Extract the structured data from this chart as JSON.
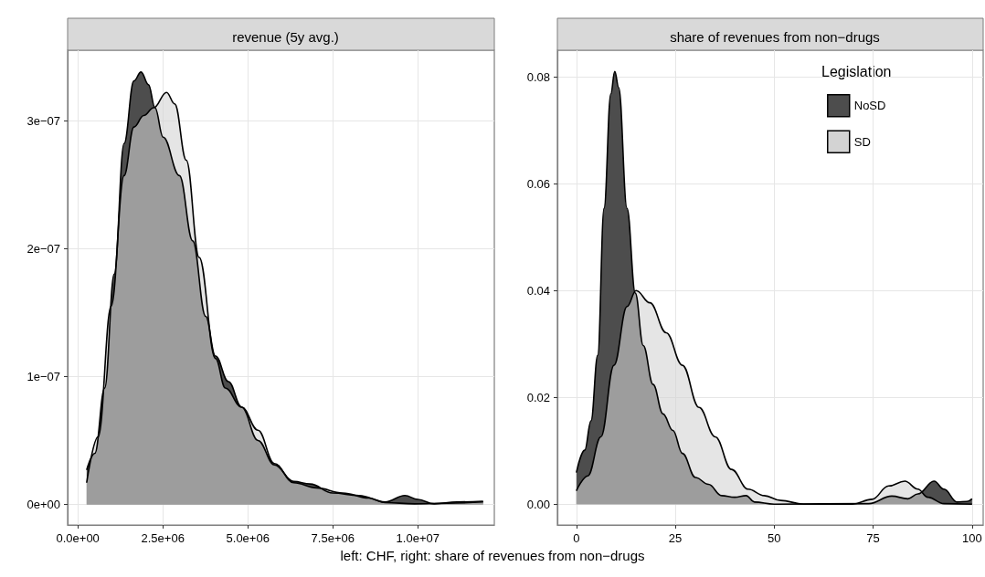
{
  "chart_data": [
    {
      "type": "area",
      "title": "revenue (5y avg.)",
      "annotations": [
        "left: CHF, right: share of revenues from non−drugs"
      ],
      "marker": "none",
      "grid": true,
      "legend": false,
      "xlim": [
        -300000,
        12250000
      ],
      "ylim": [
        -1.6e-08,
        3.55e-07
      ],
      "xticks": [
        {
          "value": 0,
          "label": "0.0e+00"
        },
        {
          "value": 2500000,
          "label": "2.5e+06"
        },
        {
          "value": 5000000,
          "label": "5.0e+06"
        },
        {
          "value": 7500000,
          "label": "7.5e+06"
        },
        {
          "value": 10000000,
          "label": "1.0e+07"
        }
      ],
      "yticks": [
        {
          "value": 0,
          "label": "0e+00"
        },
        {
          "value": 1e-07,
          "label": "1e−07"
        },
        {
          "value": 2e-07,
          "label": "2e−07"
        },
        {
          "value": 3e-07,
          "label": "3e−07"
        }
      ],
      "series": [
        {
          "color": "#4d4d4d",
          "x": [
            260000,
            500000,
            790000,
            1070000,
            1360000,
            1650000,
            1860000,
            2080000,
            2270000,
            2510000,
            2990000,
            3380000,
            3760000,
            4050000,
            4430000,
            4820000,
            5300000,
            5780000,
            6350000,
            6830000,
            7500000,
            8270000,
            9040000,
            9620000,
            10000000,
            10480000,
            11150000,
            11920000
          ],
          "values": [
            2.7e-08,
            4e-08,
            9.1e-08,
            1.8e-07,
            2.82e-07,
            3.31e-07,
            3.38e-07,
            3.28e-07,
            3.1e-07,
            2.87e-07,
            2.57e-07,
            2.06e-07,
            1.47e-07,
            1.16e-07,
            9.6e-08,
            7.6e-08,
            5e-08,
            3.1e-08,
            1.8e-08,
            1.6e-08,
            9e-09,
            7e-09,
            2e-09,
            7e-09,
            4e-09,
            5e-10,
            2e-09,
            2.5e-09
          ]
        },
        {
          "color": "#d3d3d3",
          "x": [
            260000,
            600000,
            980000,
            1360000,
            1650000,
            1940000,
            2230000,
            2610000,
            2850000,
            3190000,
            3570000,
            4050000,
            4340000,
            4820000,
            5300000,
            5780000,
            6350000,
            7020000,
            7790000,
            8560000,
            9040000,
            9900000,
            10860000,
            11920000
          ],
          "values": [
            1.7e-08,
            5.3e-08,
            1.55e-07,
            2.57e-07,
            2.95e-07,
            3.04e-07,
            3.1e-07,
            3.22e-07,
            3.13e-07,
            2.69e-07,
            1.93e-07,
            1.14e-07,
            9.1e-08,
            7.6e-08,
            5.8e-08,
            3.2e-08,
            1.7e-08,
            1.3e-08,
            9e-09,
            5e-09,
            1.5e-09,
            5e-10,
            1e-09,
            2e-09
          ]
        }
      ]
    },
    {
      "type": "area",
      "title": "share of revenues from non−drugs",
      "marker": "none",
      "grid": true,
      "legend": "top right",
      "legend_title": "Legislation",
      "xlim": [
        -4.8,
        102.8
      ],
      "ylim": [
        -0.0039,
        0.085
      ],
      "xticks": [
        0,
        25,
        50,
        75,
        100
      ],
      "yticks": [
        {
          "value": 0,
          "label": "0.00"
        },
        {
          "value": 0.02,
          "label": "0.02"
        },
        {
          "value": 0.04,
          "label": "0.04"
        },
        {
          "value": 0.06,
          "label": "0.06"
        },
        {
          "value": 0.08,
          "label": "0.08"
        }
      ],
      "series": [
        {
          "name": "NoSD",
          "color": "#4d4d4d",
          "x": [
            0,
            2.1,
            3.7,
            5.4,
            7.0,
            8.7,
            9.7,
            10.7,
            12.8,
            14.9,
            16.9,
            19.4,
            21.9,
            24.4,
            26.8,
            30.1,
            33.4,
            36.7,
            40,
            42.9,
            45,
            50,
            73.9,
            79.7,
            83.8,
            86.3,
            90.4,
            92.9,
            96.2,
            98.7,
            100
          ],
          "values": [
            0.0059,
            0.0101,
            0.0156,
            0.0279,
            0.0554,
            0.0768,
            0.081,
            0.078,
            0.0554,
            0.0395,
            0.0297,
            0.0224,
            0.0169,
            0.0138,
            0.0095,
            0.005,
            0.0037,
            0.0016,
            0.0013,
            0.0016,
            0.0004,
            0,
            0.0001,
            0.0015,
            0.001,
            0.0019,
            0.0043,
            0.0028,
            0.0004,
            0.0005,
            0.001
          ]
        },
        {
          "name": "SD",
          "color": "#d3d3d3",
          "x": [
            0,
            2.9,
            6.2,
            9.5,
            12.8,
            15.1,
            18.6,
            22.7,
            26.8,
            31,
            35.1,
            39.2,
            43.4,
            47.5,
            51.6,
            57.4,
            69.8,
            74.7,
            78.9,
            83,
            86.3,
            88.8,
            92.9,
            100
          ],
          "values": [
            0.0025,
            0.0053,
            0.0126,
            0.026,
            0.037,
            0.04,
            0.0377,
            0.0321,
            0.026,
            0.0181,
            0.0126,
            0.0065,
            0.0028,
            0.0016,
            0.0007,
            0,
            0,
            0.0009,
            0.0034,
            0.0043,
            0.0028,
            0.0013,
            0.0001,
            0
          ]
        }
      ]
    }
  ]
}
